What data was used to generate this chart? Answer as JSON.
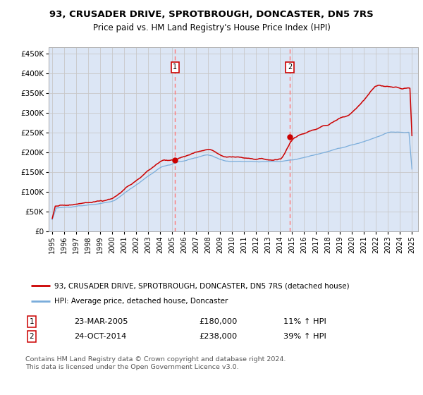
{
  "title": "93, CRUSADER DRIVE, SPROTBROUGH, DONCASTER, DN5 7RS",
  "subtitle": "Price paid vs. HM Land Registry's House Price Index (HPI)",
  "bg_color": "#dce6f5",
  "plot_bg": "#ffffff",
  "red_color": "#cc0000",
  "blue_color": "#7aaddb",
  "grid_color": "#c8c8c8",
  "dashed_color": "#ff7777",
  "shade_color": "#dce6f5",
  "sale1_date": "23-MAR-2005",
  "sale1_price": 180000,
  "sale1_pct": "11%",
  "sale2_date": "24-OCT-2014",
  "sale2_price": 238000,
  "sale2_pct": "39%",
  "legend_label_red": "93, CRUSADER DRIVE, SPROTBROUGH, DONCASTER, DN5 7RS (detached house)",
  "legend_label_blue": "HPI: Average price, detached house, Doncaster",
  "footer": "Contains HM Land Registry data © Crown copyright and database right 2024.\nThis data is licensed under the Open Government Licence v3.0.",
  "ylim": [
    0,
    465000
  ],
  "yticks": [
    0,
    50000,
    100000,
    150000,
    200000,
    250000,
    300000,
    350000,
    400000,
    450000
  ],
  "ytick_labels": [
    "£0",
    "£50K",
    "£100K",
    "£150K",
    "£200K",
    "£250K",
    "£300K",
    "£350K",
    "£400K",
    "£450K"
  ],
  "sale1_x": 2005.23,
  "sale2_x": 2014.81,
  "xlim_start": 1994.7,
  "xlim_end": 2025.5
}
